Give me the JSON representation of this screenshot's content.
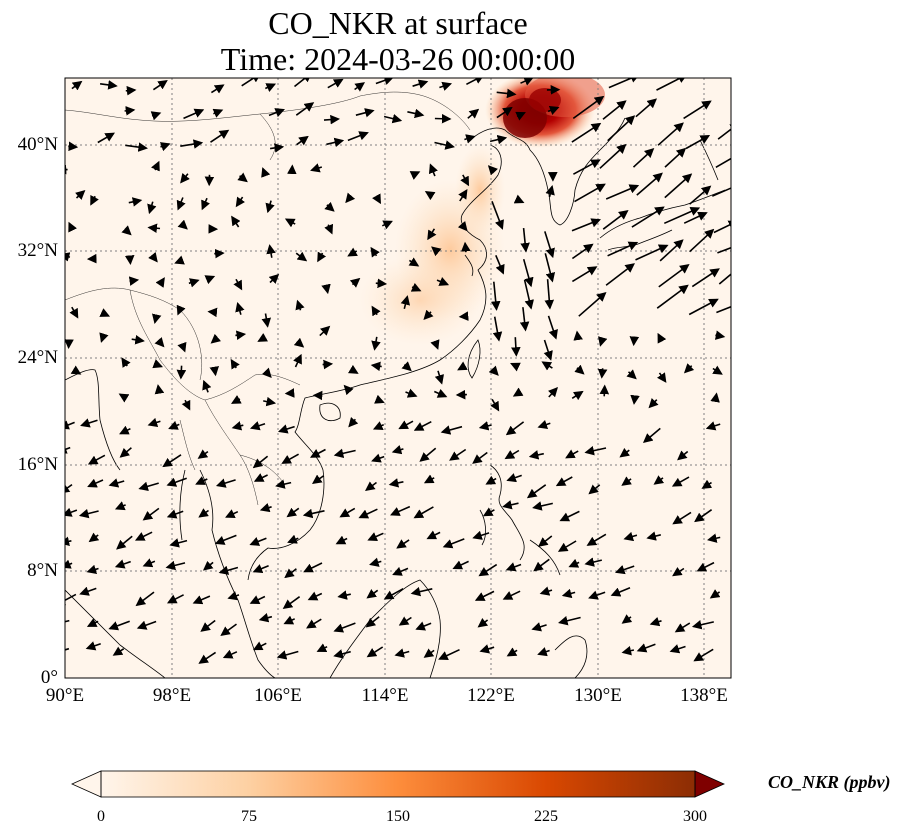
{
  "title": {
    "line1": "CO_NKR at surface",
    "line2": "Time: 2024-03-26 00:00:00"
  },
  "map": {
    "lon_range": [
      90,
      140
    ],
    "lat_range": [
      0,
      45
    ],
    "lon_ticks": [
      "90°E",
      "98°E",
      "106°E",
      "114°E",
      "122°E",
      "130°E",
      "138°E"
    ],
    "lat_ticks": [
      "0°",
      "8°N",
      "16°N",
      "24°N",
      "32°N",
      "40°N"
    ],
    "gridlines": true,
    "colors": {
      "background": "#fff5eb",
      "coast": "#000000",
      "grid": "#808080",
      "arrow": "#000000"
    }
  },
  "colorbar": {
    "label": "CO_NKR (ppbv)",
    "ticks": [
      "0",
      "75",
      "150",
      "225",
      "300"
    ],
    "range": [
      0,
      300
    ],
    "extend": "both",
    "cmap_stops": [
      "#fff5eb",
      "#fdd0a2",
      "#fd8d3c",
      "#d94801",
      "#8c2d04",
      "#7f0000"
    ]
  }
}
